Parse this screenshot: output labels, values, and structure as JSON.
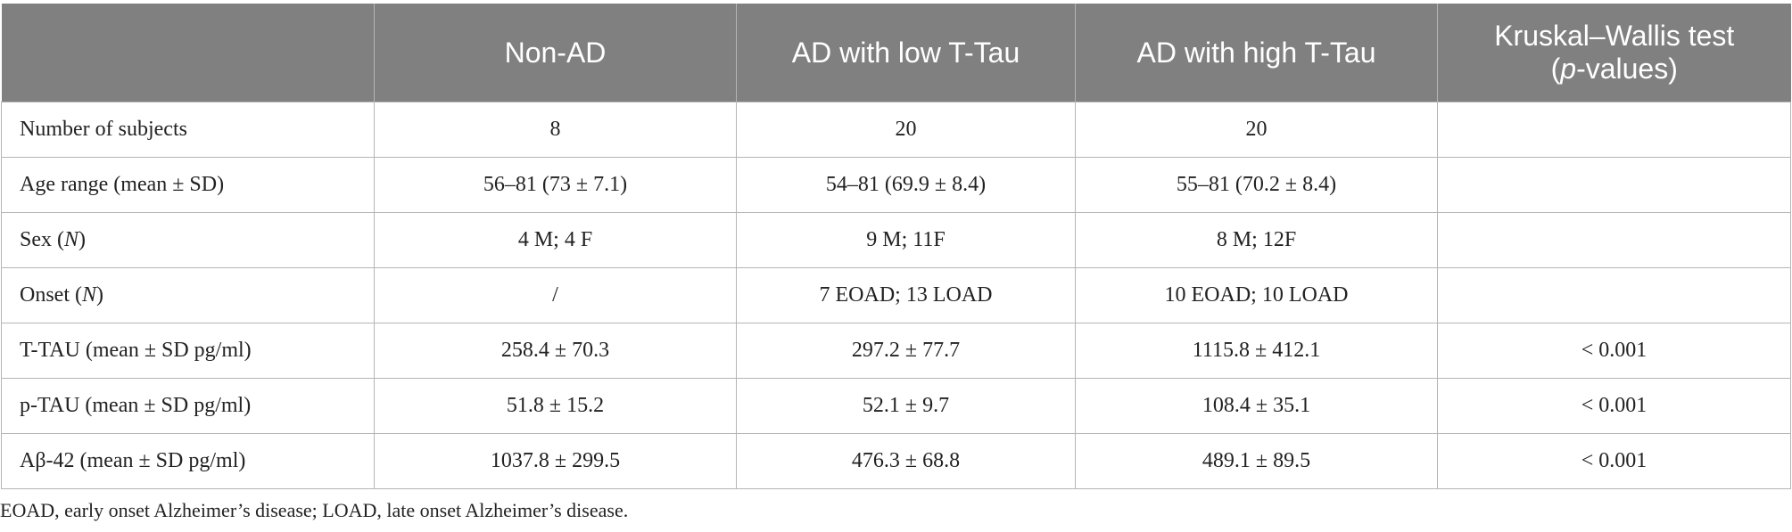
{
  "table": {
    "header": [
      null,
      "Non-AD",
      "AD with low T-Tau",
      "AD with high T-Tau",
      [
        "Kruskal–Wallis test",
        {
          "br": true
        },
        "(",
        {
          "i": "p"
        },
        "-values)"
      ]
    ],
    "rows": [
      [
        "Number of subjects",
        "8",
        "20",
        "20",
        null
      ],
      [
        "Age range (mean ± SD)",
        "56–81 (73 ± 7.1)",
        "54–81 (69.9 ± 8.4)",
        "55–81 (70.2 ± 8.4)",
        null
      ],
      [
        [
          "Sex (",
          {
            "i": "N"
          },
          ")"
        ],
        "4 M; 4 F",
        "9 M; 11F",
        "8 M; 12F",
        null
      ],
      [
        [
          "Onset (",
          {
            "i": "N"
          },
          ")"
        ],
        "/",
        "7 EOAD; 13 LOAD",
        "10 EOAD; 10 LOAD",
        null
      ],
      [
        "T-TAU (mean ± SD pg/ml)",
        "258.4 ± 70.3",
        "297.2 ± 77.7",
        "1115.8 ± 412.1",
        "< 0.001"
      ],
      [
        "p-TAU (mean ± SD pg/ml)",
        "51.8 ± 15.2",
        "52.1 ± 9.7",
        "108.4 ± 35.1",
        "< 0.001"
      ],
      [
        "Aβ-42 (mean ± SD pg/ml)",
        "1037.8 ± 299.5",
        "476.3 ± 68.8",
        "489.1 ± 89.5",
        "< 0.001"
      ]
    ]
  },
  "footnote": "EOAD, early onset Alzheimer’s disease; LOAD, late onset Alzheimer’s disease."
}
